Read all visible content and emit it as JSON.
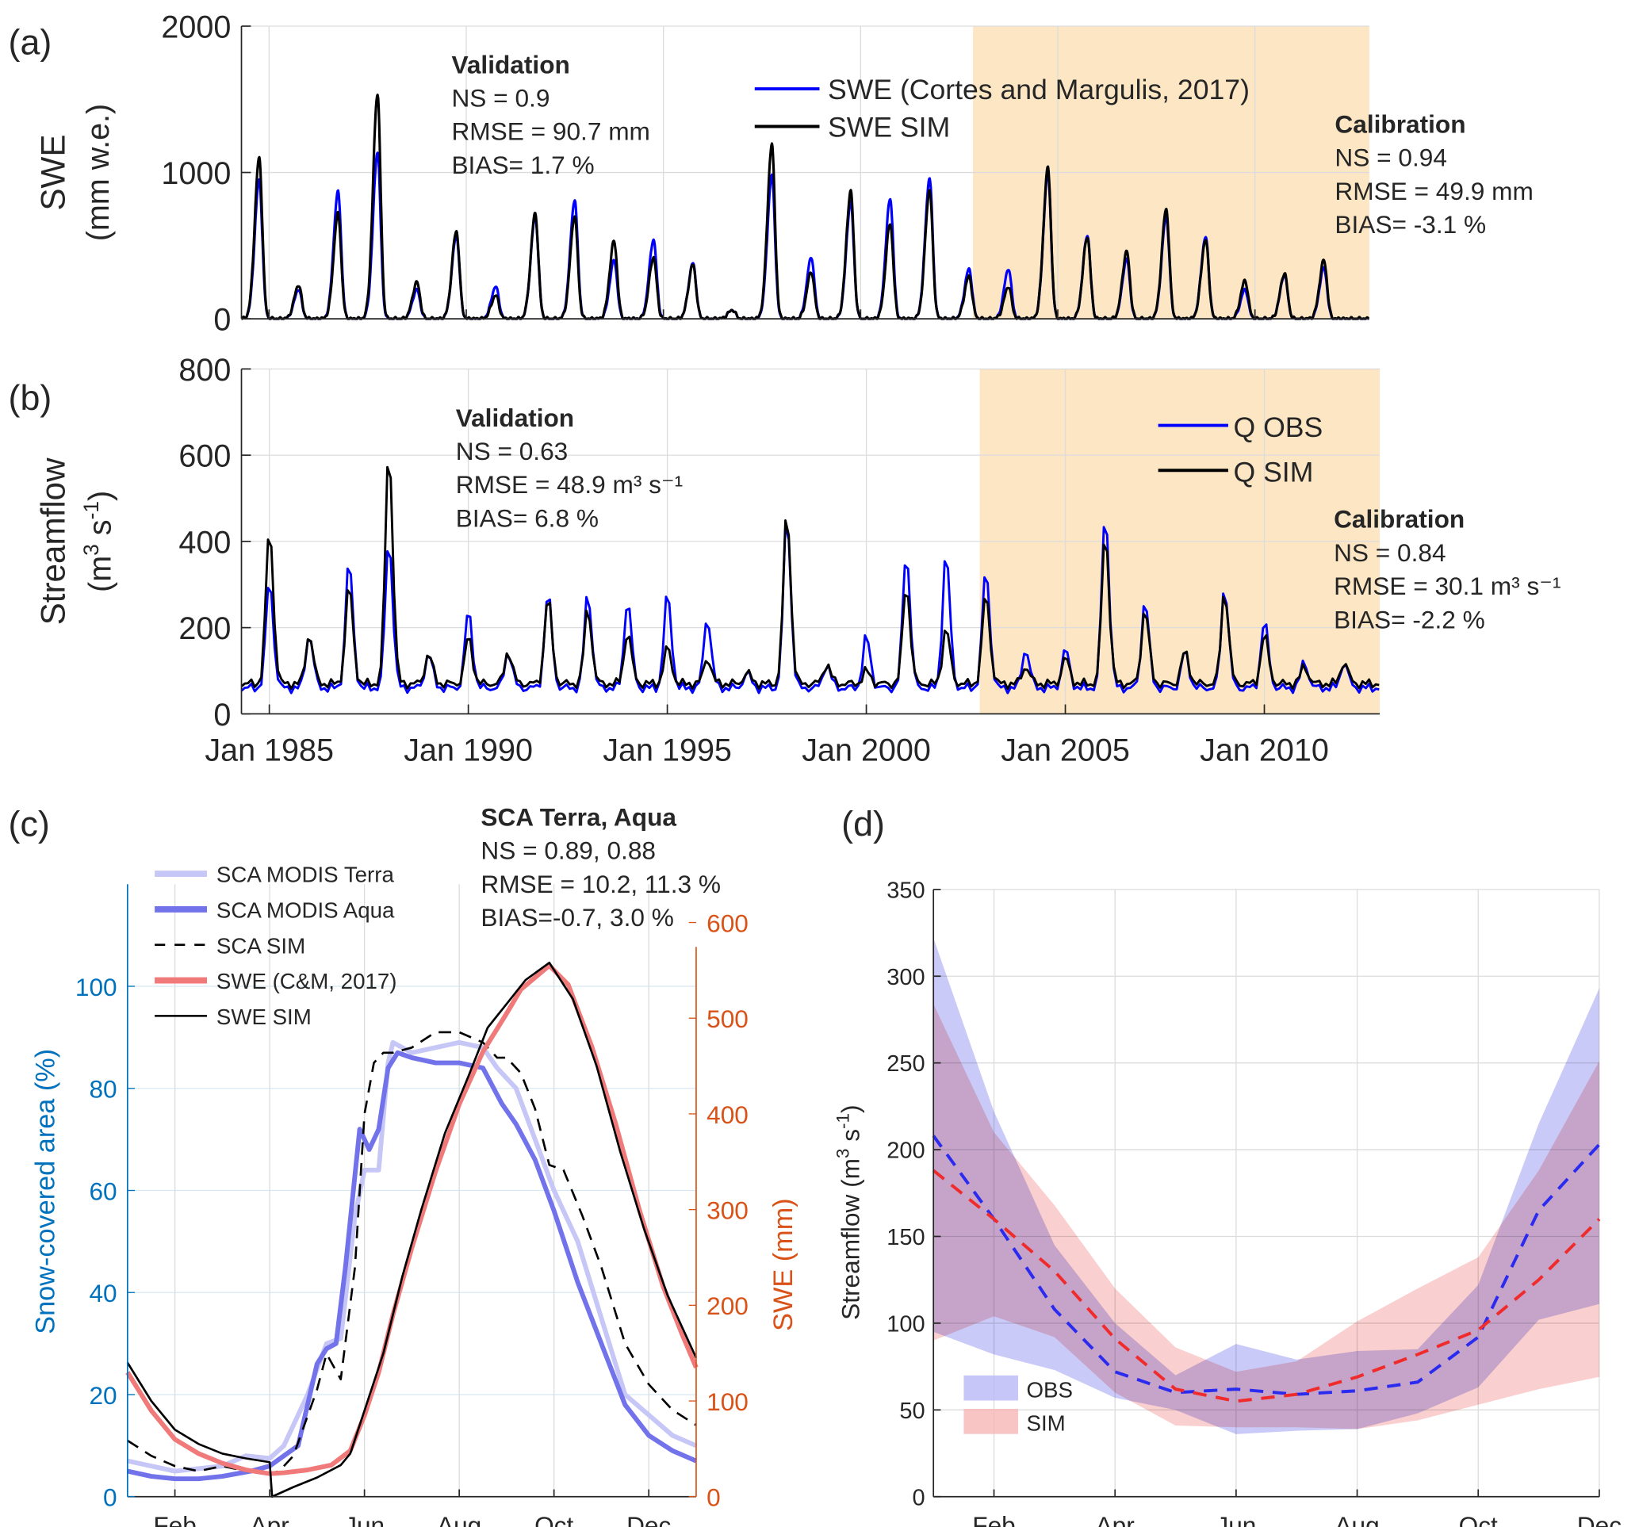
{
  "panels": {
    "a": {
      "label": "(a)"
    },
    "b": {
      "label": "(b)"
    },
    "c": {
      "label": "(c)"
    },
    "d": {
      "label": "(d)"
    }
  },
  "colors": {
    "obs_blue": "#0000ff",
    "sim_black": "#000000",
    "calibration_shade": "#fde6c3",
    "terra": "#c6c6f7",
    "aqua": "#7272ea",
    "swe_cm": "#f07a7a",
    "left_axis": "#0072bd",
    "right_axis": "#d95319",
    "obs_band": "#b8b8f6",
    "sim_band": "#f7b5b5",
    "obs_mean": "#2b2bef",
    "sim_mean": "#ef2b2b"
  },
  "chart_data": [
    {
      "id": "a",
      "type": "line",
      "title": "",
      "ylabel": [
        "SWE",
        "(mm w.e.)"
      ],
      "xlabel": "",
      "xlim": [
        1984.3,
        2012.9
      ],
      "ylim": [
        0,
        2000
      ],
      "yticks": [
        0,
        1000,
        2000
      ],
      "xtick_years": [
        1985,
        1990,
        1995,
        2000,
        2005,
        2010
      ],
      "grid": true,
      "calibration_period": [
        2002.85,
        2012.9
      ],
      "legend": {
        "position": "top-center",
        "entries": [
          "SWE (Cortes and Margulis, 2017)",
          "SWE SIM"
        ]
      },
      "annotations": {
        "validation": {
          "title": "Validation",
          "lines": [
            "NS = 0.9",
            "RMSE = 90.7 mm",
            "BIAS= 1.7 %"
          ]
        },
        "calibration": {
          "title": "Calibration",
          "lines": [
            "NS = 0.94",
            "RMSE = 49.9 mm",
            "BIAS= -3.1 %"
          ]
        }
      },
      "note": "annual peak SWE (mm w.e.), one per snow season, peaks around September",
      "peak_years": [
        1984.75,
        1985.75,
        1986.75,
        1987.75,
        1988.75,
        1989.75,
        1990.75,
        1991.75,
        1992.75,
        1993.75,
        1994.75,
        1995.75,
        1996.75,
        1997.75,
        1998.75,
        1999.75,
        2000.75,
        2001.75,
        2002.75,
        2003.75,
        2004.75,
        2005.75,
        2006.75,
        2007.75,
        2008.75,
        2009.75,
        2010.75,
        2011.75
      ],
      "series": [
        {
          "name": "SWE (Cortes and Margulis, 2017)",
          "color": "#0000ff",
          "peaks": [
            950,
            200,
            870,
            1140,
            200,
            570,
            220,
            700,
            810,
            400,
            540,
            380,
            60,
            980,
            420,
            800,
            820,
            960,
            340,
            340,
            1000,
            570,
            410,
            700,
            560,
            200,
            300,
            350
          ]
        },
        {
          "name": "SWE SIM",
          "color": "#000000",
          "peaks": [
            1100,
            230,
            720,
            1540,
            250,
            600,
            160,
            720,
            700,
            530,
            420,
            370,
            60,
            1190,
            320,
            870,
            650,
            880,
            290,
            220,
            1030,
            560,
            460,
            750,
            540,
            260,
            310,
            400
          ]
        }
      ]
    },
    {
      "id": "b",
      "type": "line",
      "ylabel": [
        "Streamflow",
        "(m3 s-1)"
      ],
      "xlim": [
        1984.3,
        2012.9
      ],
      "ylim": [
        0,
        800
      ],
      "yticks": [
        0,
        200,
        400,
        600,
        800
      ],
      "xticklabels": [
        "Jan 1985",
        "Jan 1990",
        "Jan 1995",
        "Jan 2000",
        "Jan 2005",
        "Jan 2010"
      ],
      "xtick_years": [
        1985,
        1990,
        1995,
        2000,
        2005,
        2010
      ],
      "grid": true,
      "calibration_period": [
        2002.85,
        2012.9
      ],
      "legend": {
        "position": "top-right",
        "entries": [
          "Q OBS",
          "Q SIM"
        ]
      },
      "annotations": {
        "validation": {
          "title": "Validation",
          "lines": [
            "NS = 0.63",
            "RMSE = 48.9 m³ s⁻¹",
            "BIAS= 6.8 %"
          ]
        },
        "calibration": {
          "title": "Calibration",
          "lines": [
            "NS = 0.84",
            "RMSE = 30.1 m³ s⁻¹",
            "BIAS= -2.2 %"
          ]
        }
      },
      "note": "annual peak monthly streamflow (m3 s-1), peaks around December-January",
      "peak_years": [
        1985.0,
        1986.0,
        1987.0,
        1988.0,
        1989.0,
        1990.0,
        1991.0,
        1992.0,
        1993.0,
        1994.0,
        1995.0,
        1996.0,
        1997.0,
        1998.0,
        1999.0,
        2000.0,
        2001.0,
        2002.0,
        2003.0,
        2004.0,
        2005.0,
        2006.0,
        2007.0,
        2008.0,
        2009.0,
        2010.0,
        2011.0,
        2012.0
      ],
      "series": [
        {
          "name": "Q OBS",
          "color": "#0000ff",
          "peaks": [
            310,
            185,
            355,
            405,
            140,
            240,
            145,
            280,
            280,
            265,
            280,
            225,
            95,
            460,
            115,
            180,
            375,
            375,
            335,
            150,
            150,
            465,
            265,
            145,
            295,
            215,
            120,
            120
          ],
          "baseline": 60
        },
        {
          "name": "Q SIM",
          "color": "#000000",
          "peaks": [
            430,
            185,
            300,
            615,
            140,
            180,
            145,
            270,
            245,
            190,
            155,
            130,
            95,
            470,
            115,
            100,
            300,
            200,
            280,
            110,
            130,
            420,
            245,
            145,
            285,
            185,
            110,
            120
          ],
          "baseline": 70
        }
      ]
    },
    {
      "id": "c",
      "type": "line",
      "xticklabels": [
        "Feb",
        "Apr",
        "Jun",
        "Aug",
        "Oct",
        "Dec"
      ],
      "xlim_months": [
        0,
        12
      ],
      "ylabel_left": "Snow-covered area (%)",
      "ylabel_right": "SWE (mm)",
      "ylim_left": [
        0,
        120
      ],
      "yticks_left": [
        0,
        20,
        40,
        60,
        80,
        100
      ],
      "ylim_right": [
        0,
        640
      ],
      "yticks_right": [
        0,
        100,
        200,
        300,
        400,
        500,
        600
      ],
      "grid": true,
      "legend": {
        "position": "top-left",
        "entries": [
          "SCA MODIS Terra",
          "SCA MODIS Aqua",
          "SCA SIM",
          "SWE (C&M, 2017)",
          "SWE SIM"
        ]
      },
      "annotations": {
        "title": "SCA Terra, Aqua",
        "lines": [
          "NS = 0.89, 0.88",
          "RMSE = 10.2, 11.3 %",
          "BIAS=-0.7, 3.0 %"
        ]
      },
      "series": [
        {
          "name": "SCA MODIS Terra",
          "axis": "left",
          "style": "solid-thick",
          "color": "#c6c6f7",
          "x": [
            0,
            1,
            2,
            2.5,
            3,
            3.3,
            3.8,
            4.2,
            4.5,
            4.8,
            5.0,
            5.3,
            5.5,
            5.6,
            6,
            6.5,
            7,
            7.5,
            7.8,
            8.2,
            8.6,
            9,
            9.5,
            10,
            10.5,
            11,
            11.5,
            12
          ],
          "y": [
            7,
            5,
            6,
            8,
            7.5,
            10,
            20,
            30,
            31,
            55,
            64,
            64,
            85,
            89,
            87,
            88,
            89,
            88,
            84,
            80,
            70,
            60,
            50,
            35,
            20,
            16,
            12,
            10
          ]
        },
        {
          "name": "SCA MODIS Aqua",
          "axis": "left",
          "style": "solid-thick",
          "color": "#7272ea",
          "x": [
            0,
            0.5,
            1,
            1.5,
            2,
            2.6,
            3,
            3.3,
            3.6,
            4,
            4.2,
            4.4,
            4.6,
            4.9,
            5.1,
            5.3,
            5.5,
            5.7,
            6,
            6.5,
            7,
            7.5,
            7.9,
            8.2,
            8.6,
            9,
            9.5,
            10,
            10.5,
            11,
            11.5,
            12
          ],
          "y": [
            5,
            4,
            3.5,
            3.5,
            4,
            5,
            6,
            8,
            10,
            26,
            29,
            30,
            45,
            72,
            68,
            72,
            84,
            87,
            86,
            85,
            85,
            84,
            77,
            73,
            66,
            56,
            42,
            30,
            18,
            12,
            9,
            7
          ]
        },
        {
          "name": "SCA SIM",
          "axis": "left",
          "style": "dashed",
          "color": "#000000",
          "x": [
            0,
            0.5,
            1,
            1.5,
            2,
            2.5,
            3,
            3.2,
            3.5,
            4,
            4.2,
            4.5,
            4.8,
            5,
            5.2,
            5.4,
            5.6,
            6,
            6.5,
            7,
            7.5,
            7.8,
            8,
            8.3,
            8.6,
            8.9,
            9.2,
            9.6,
            10,
            10.5,
            11,
            11.5,
            12
          ],
          "y": [
            11,
            8,
            6,
            5,
            6,
            5,
            4.5,
            5,
            8,
            21,
            28,
            23,
            45,
            75,
            85,
            87,
            87,
            88,
            91,
            91,
            89,
            86,
            86,
            83,
            76,
            65,
            64,
            55,
            45,
            30,
            22,
            17,
            14
          ]
        },
        {
          "name": "SWE (C&M, 2017)",
          "axis": "right",
          "style": "solid-thick",
          "color": "#f07a7a",
          "x": [
            0,
            0.5,
            1,
            1.5,
            2,
            2.5,
            3,
            3.3,
            3.8,
            4.3,
            4.7,
            5,
            5.3,
            5.6,
            6,
            6.5,
            7,
            7.5,
            8,
            8.3,
            8.9,
            9.3,
            9.8,
            10.3,
            10.8,
            11.3,
            11.7,
            12
          ],
          "y": [
            130,
            90,
            60,
            45,
            35,
            28,
            24,
            25,
            28,
            33,
            48,
            85,
            130,
            190,
            260,
            340,
            410,
            465,
            505,
            530,
            555,
            535,
            470,
            390,
            300,
            220,
            170,
            135
          ]
        },
        {
          "name": "SWE SIM",
          "axis": "right",
          "style": "solid",
          "color": "#000000",
          "x": [
            0,
            0.5,
            1,
            1.5,
            2,
            2.5,
            3,
            3.05,
            3.5,
            4,
            4.5,
            4.7,
            5,
            5.4,
            5.8,
            6.2,
            6.7,
            7.2,
            7.6,
            8,
            8.4,
            8.9,
            9.4,
            9.9,
            10.4,
            10.9,
            11.4,
            12
          ],
          "y": [
            140,
            100,
            70,
            55,
            45,
            40,
            36,
            0,
            10,
            20,
            33,
            45,
            90,
            150,
            230,
            300,
            380,
            440,
            490,
            515,
            540,
            558,
            520,
            450,
            360,
            280,
            210,
            145
          ]
        }
      ]
    },
    {
      "id": "d",
      "type": "area",
      "xticklabels": [
        "Feb",
        "Apr",
        "Jun",
        "Aug",
        "Oct",
        "Dec"
      ],
      "months": [
        1,
        2,
        3,
        4,
        5,
        6,
        7,
        8,
        9,
        10,
        11,
        12
      ],
      "ylabel": "Streamflow (m³ s⁻¹)",
      "ylim": [
        0,
        350
      ],
      "yticks": [
        0,
        50,
        100,
        150,
        200,
        250,
        300,
        350
      ],
      "grid": true,
      "legend": {
        "position": "bottom-left",
        "entries": [
          "OBS",
          "SIM"
        ]
      },
      "series": [
        {
          "name": "OBS",
          "mean": [
            208,
            160,
            108,
            72,
            60,
            62,
            59,
            61,
            66,
            92,
            165,
            203
          ],
          "upper": [
            322,
            222,
            145,
            100,
            70,
            88,
            79,
            84,
            85,
            122,
            215,
            293
          ],
          "lower": [
            95,
            82,
            73,
            57,
            50,
            36,
            38,
            39,
            48,
            63,
            102,
            111
          ]
        },
        {
          "name": "SIM",
          "mean": [
            188,
            160,
            130,
            91,
            62,
            55,
            59,
            69,
            82,
            96,
            125,
            160
          ],
          "upper": [
            284,
            210,
            168,
            120,
            86,
            72,
            78,
            101,
            120,
            138,
            188,
            251
          ],
          "lower": [
            90,
            104,
            92,
            60,
            41,
            40,
            40,
            39,
            44,
            53,
            62,
            69
          ]
        }
      ]
    }
  ]
}
